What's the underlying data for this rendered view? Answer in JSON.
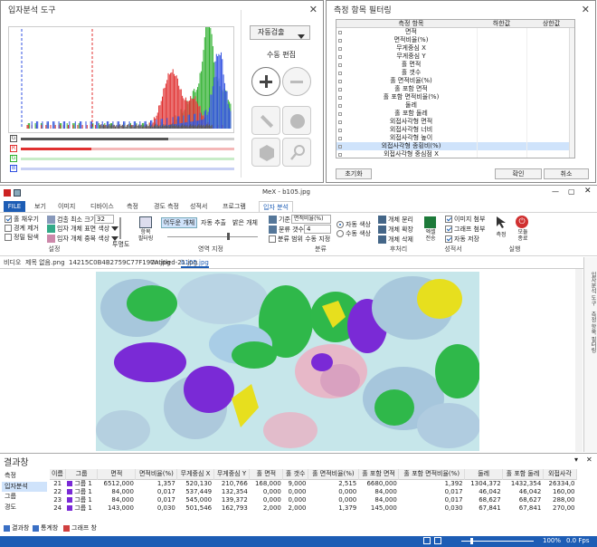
{
  "hist_dialog": {
    "title": "입자분석 도구",
    "auto_detect": "자동검출",
    "manual_edit": "수동 편집",
    "channels": [
      "G",
      "R",
      "G",
      "B"
    ],
    "channel_colors": [
      "#555555",
      "#e03030",
      "#30b030",
      "#3050e0"
    ]
  },
  "filter_dialog": {
    "title": "측정 항목 필터링",
    "columns": [
      "측정 항목",
      "하한값",
      "상한값"
    ],
    "items": [
      "면적",
      "면적비율(%)",
      "무게중심 X",
      "무게중심 Y",
      "홀 면적",
      "홀 갯수",
      "홀 면적비율(%)",
      "홀 포함 면적",
      "홀 포함 면적비율(%)",
      "둘레",
      "홀 포함 둘레",
      "외접사각형 면적",
      "외접사각형 너비",
      "외접사각형 높이",
      "외접사각형 종횡비(%)",
      "외접사각형 중심점 X"
    ],
    "reset": "초기화",
    "ok": "확인",
    "cancel": "취소"
  },
  "app": {
    "title": "MeX - b105.jpg",
    "file_tab": "FILE",
    "tabs": [
      "보기",
      "이미지",
      "디바이스",
      "측정",
      "경도 측정",
      "성적서",
      "프로그램",
      "입자 분석"
    ],
    "ribbon": {
      "hole_fill": "홀 채우기",
      "border_remove": "경계 제거",
      "shape_smooth": "정밀 탐색",
      "min_size_label": "검출 최소 크기",
      "min_size_value": "32",
      "particle_color": "입자 개체 표면 색상",
      "particle_overlap": "입자 개체 중복 색상",
      "transparency": "투명도",
      "item_filter": "항목\n필터링",
      "dark_object": "어두운 개체",
      "auto_extract": "자동 추출",
      "bright_object": "밝은 개체",
      "criteria_label": "기준",
      "criteria_value": "면적비율(%)",
      "count_label": "분류 갯수",
      "count_value": "4",
      "range_apply": "분류 범위 수동 지정",
      "auto_color": "자동 색상",
      "manual_color": "수동 색상",
      "object_separate": "개체 분리",
      "object_expand": "개체 확장",
      "object_remove": "개체 삭제",
      "excel_export": "엑셀\n전송",
      "image_include": "이미지 첨부",
      "graph_include": "그래프 첨부",
      "auto_save": "자동 저장",
      "measure": "측정",
      "end": "모듈\n종료",
      "groups": [
        "설정",
        "영역 지정",
        "분류",
        "후처리",
        "성적서",
        "실행"
      ]
    },
    "doc_tabs": [
      "비디오",
      "제목 없음.png",
      "14215C0B4B2759C77F197A.jpg",
      "Untitled-21.jpg",
      "b105.jpg"
    ],
    "side_labels": [
      "입자분석 도구",
      "측정 항목 필터링"
    ]
  },
  "results": {
    "title": "결과창",
    "nav": [
      "측정",
      "입자분석",
      "그룹",
      "경도"
    ],
    "columns": [
      "이름",
      "그룹",
      "면적",
      "면적비율(%)",
      "무게중심 X",
      "무게중심 Y",
      "홀 면적",
      "홀 갯수",
      "홀 면적비율(%)",
      "홀 포함 면적",
      "홀 포함 면적비율(%)",
      "둘레",
      "홀 포함 둘레",
      "외접사각"
    ],
    "rows": [
      {
        "name": "21",
        "group": "그룹 1",
        "v": [
          "6512,000",
          "1,357",
          "520,130",
          "210,766",
          "168,000",
          "9,000",
          "2,515",
          "6680,000",
          "1,392",
          "1304,372",
          "1432,354",
          "26334,0"
        ]
      },
      {
        "name": "22",
        "group": "그룹 1",
        "v": [
          "84,000",
          "0,017",
          "537,449",
          "132,354",
          "0,000",
          "0,000",
          "0,000",
          "84,000",
          "0,017",
          "46,042",
          "46,042",
          "160,00"
        ]
      },
      {
        "name": "23",
        "group": "그룹 1",
        "v": [
          "84,000",
          "0,017",
          "545,000",
          "139,372",
          "0,000",
          "0,000",
          "0,000",
          "84,000",
          "0,017",
          "68,627",
          "68,627",
          "288,00"
        ]
      },
      {
        "name": "24",
        "group": "그룹 1",
        "v": [
          "143,000",
          "0,030",
          "501,546",
          "162,793",
          "2,000",
          "2,000",
          "1,379",
          "145,000",
          "0,030",
          "67,841",
          "67,841",
          "270,00"
        ]
      }
    ],
    "bottom_tabs": [
      "결과창",
      "통계창",
      "그래프 창"
    ]
  },
  "status": {
    "zoom": "100%",
    "fps": "0.0 Fps"
  }
}
